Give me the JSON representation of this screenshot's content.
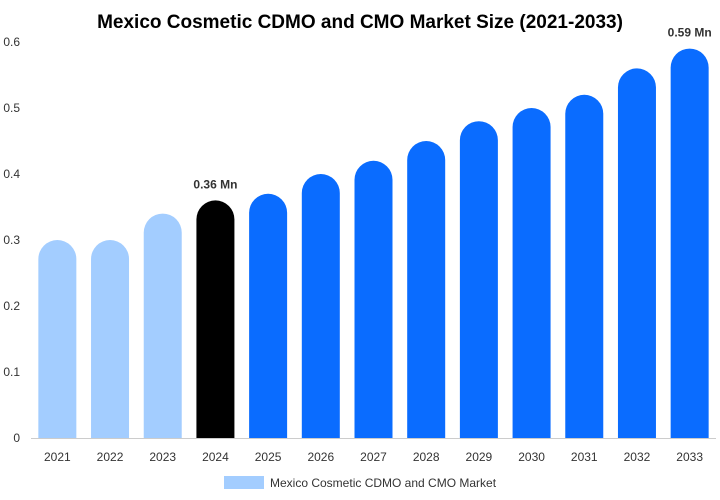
{
  "chart_data": {
    "type": "bar",
    "title": "Mexico Cosmetic CDMO and CMO Market Size (2021-2033)",
    "xlabel": "",
    "ylabel": "",
    "categories": [
      "2021",
      "2022",
      "2023",
      "2024",
      "2025",
      "2026",
      "2027",
      "2028",
      "2029",
      "2030",
      "2031",
      "2032",
      "2033"
    ],
    "series": [
      {
        "name": "Mexico Cosmetic CDMO and CMO Market",
        "values": [
          0.3,
          0.3,
          0.34,
          0.36,
          0.37,
          0.4,
          0.42,
          0.45,
          0.48,
          0.5,
          0.52,
          0.56,
          0.59
        ]
      }
    ],
    "ylim": [
      0,
      0.6
    ],
    "yticks": [
      "0",
      "0.1",
      "0.2",
      "0.3",
      "0.4",
      "0.5",
      "0.6"
    ],
    "ytick_values": [
      0,
      0.1,
      0.2,
      0.3,
      0.4,
      0.5,
      0.6
    ],
    "data_labels": [
      {
        "category": "2024",
        "text": "0.36 Mn"
      },
      {
        "category": "2033",
        "text": "0.59 Mn"
      }
    ],
    "grid": false,
    "legend_position": "bottom",
    "colors": {
      "historical": "#a3cdff",
      "current": "#000000",
      "forecast": "#0a6cff",
      "legend": "#a3cdff",
      "axis": "#cccccc",
      "text": "#333333"
    },
    "bar_color_roles": [
      "historical",
      "historical",
      "historical",
      "current",
      "forecast",
      "forecast",
      "forecast",
      "forecast",
      "forecast",
      "forecast",
      "forecast",
      "forecast",
      "forecast"
    ]
  }
}
